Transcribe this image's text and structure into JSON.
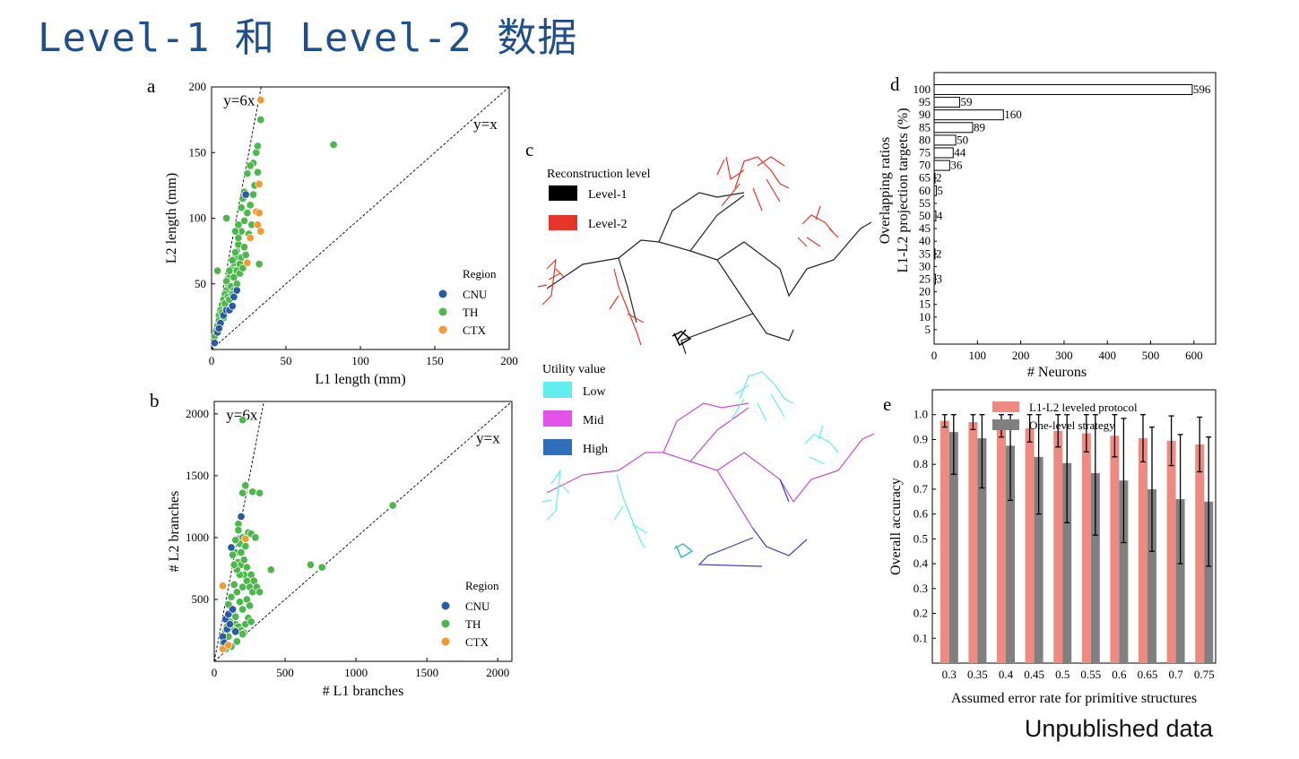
{
  "slide": {
    "title": "Level-1 和 Level-2 数据",
    "footer": "Unpublished data"
  },
  "colors": {
    "CNU": "#2a5aa5",
    "TH": "#4cb84c",
    "CTX": "#f29b34",
    "level1": "#000000",
    "level2": "#e8352a",
    "low": "#62eef0",
    "mid": "#e452ea",
    "high": "#2f6fba",
    "bar_red": "#ee8a82",
    "bar_gray": "#808080"
  },
  "panels": {
    "c": {
      "letter": "c",
      "recon_legend": {
        "title": "Reconstruction level",
        "items": [
          "Level-1",
          "Level-2"
        ]
      },
      "utility_legend": {
        "title": "Utility value",
        "items": [
          "Low",
          "Mid",
          "High"
        ]
      }
    }
  },
  "chart_data": [
    {
      "id": "a",
      "letter": "a",
      "type": "scatter",
      "xlabel": "L1 length (mm)",
      "ylabel": "L2 length (mm)",
      "xlim": [
        0,
        200
      ],
      "ylim": [
        0,
        200
      ],
      "xticks": [
        0,
        50,
        100,
        150,
        200
      ],
      "yticks": [
        50,
        100,
        150,
        200
      ],
      "lines": [
        {
          "label": "y=6x",
          "slope": 6
        },
        {
          "label": "y=x",
          "slope": 1
        }
      ],
      "legend": {
        "title": "Region",
        "position": "bottom-right",
        "items": [
          "CNU",
          "TH",
          "CTX"
        ]
      },
      "series": [
        {
          "name": "TH",
          "points": [
            [
              13,
              58
            ],
            [
              14,
              62
            ],
            [
              15,
              66
            ],
            [
              16,
              70
            ],
            [
              17,
              75
            ],
            [
              18,
              80
            ],
            [
              12,
              55
            ],
            [
              11,
              50
            ],
            [
              10,
              45
            ],
            [
              9,
              42
            ],
            [
              8,
              38
            ],
            [
              7,
              34
            ],
            [
              6,
              30
            ],
            [
              5,
              26
            ],
            [
              10,
              52
            ],
            [
              12,
              60
            ],
            [
              14,
              68
            ],
            [
              16,
              74
            ],
            [
              18,
              85
            ],
            [
              20,
              90
            ],
            [
              22,
              98
            ],
            [
              24,
              104
            ],
            [
              26,
              110
            ],
            [
              28,
              118
            ],
            [
              20,
              70
            ],
            [
              22,
              78
            ],
            [
              19,
              65
            ],
            [
              17,
              60
            ],
            [
              15,
              55
            ],
            [
              13,
              48
            ],
            [
              11,
              40
            ],
            [
              9,
              35
            ],
            [
              7,
              28
            ],
            [
              5,
              22
            ],
            [
              4,
              18
            ],
            [
              3,
              14
            ],
            [
              2,
              10
            ],
            [
              15,
              45
            ],
            [
              17,
              50
            ],
            [
              19,
              58
            ],
            [
              21,
              62
            ],
            [
              23,
              72
            ],
            [
              25,
              88
            ],
            [
              27,
              95
            ],
            [
              29,
              125
            ],
            [
              31,
              135
            ],
            [
              30,
              150
            ],
            [
              31,
              155
            ],
            [
              33,
              175
            ],
            [
              28,
              142
            ],
            [
              26,
              140
            ],
            [
              24,
              134
            ],
            [
              22,
              120
            ],
            [
              21,
              115
            ],
            [
              20,
              108
            ],
            [
              10,
              100
            ],
            [
              4,
              60
            ],
            [
              32,
              65
            ],
            [
              82,
              156
            ],
            [
              18,
              95
            ],
            [
              16,
              90
            ],
            [
              12,
              38
            ],
            [
              14,
              42
            ],
            [
              8,
              24
            ],
            [
              10,
              30
            ]
          ]
        },
        {
          "name": "CNU",
          "points": [
            [
              2,
              5
            ],
            [
              4,
              13
            ],
            [
              6,
              20
            ],
            [
              8,
              26
            ],
            [
              10,
              30
            ],
            [
              12,
              30
            ],
            [
              15,
              40
            ],
            [
              17,
              45
            ],
            [
              23,
              118
            ],
            [
              14,
              33
            ],
            [
              5,
              16
            ]
          ]
        },
        {
          "name": "CTX",
          "points": [
            [
              33,
              190
            ],
            [
              32,
              126
            ],
            [
              30,
              105
            ],
            [
              32,
              104
            ],
            [
              31,
              95
            ],
            [
              33,
              90
            ],
            [
              24,
              66
            ],
            [
              26,
              85
            ]
          ]
        }
      ]
    },
    {
      "id": "b",
      "letter": "b",
      "type": "scatter",
      "xlabel": "# L1 branches",
      "ylabel": "# L2 branches",
      "xlim": [
        0,
        2100
      ],
      "ylim": [
        0,
        2100
      ],
      "xticks": [
        0,
        500,
        1000,
        1500,
        2000
      ],
      "yticks": [
        500,
        1000,
        1500,
        2000
      ],
      "lines": [
        {
          "label": "y=6x",
          "slope": 6
        },
        {
          "label": "y=x",
          "slope": 1
        }
      ],
      "legend": {
        "title": "Region",
        "position": "bottom-right",
        "items": [
          "CNU",
          "TH",
          "CTX"
        ]
      },
      "series": [
        {
          "name": "TH",
          "points": [
            [
              200,
              1950
            ],
            [
              220,
              1420
            ],
            [
              200,
              1360
            ],
            [
              270,
              1370
            ],
            [
              320,
              1360
            ],
            [
              170,
              1110
            ],
            [
              200,
              1000
            ],
            [
              240,
              1040
            ],
            [
              260,
              1030
            ],
            [
              290,
              1000
            ],
            [
              180,
              950
            ],
            [
              220,
              930
            ],
            [
              150,
              880
            ],
            [
              170,
              800
            ],
            [
              190,
              780
            ],
            [
              210,
              700
            ],
            [
              230,
              650
            ],
            [
              250,
              600
            ],
            [
              270,
              560
            ],
            [
              140,
              620
            ],
            [
              160,
              560
            ],
            [
              180,
              480
            ],
            [
              200,
              420
            ],
            [
              120,
              520
            ],
            [
              100,
              460
            ],
            [
              130,
              400
            ],
            [
              150,
              360
            ],
            [
              110,
              320
            ],
            [
              90,
              280
            ],
            [
              80,
              240
            ],
            [
              70,
              200
            ],
            [
              150,
              300
            ],
            [
              170,
              280
            ],
            [
              190,
              250
            ],
            [
              210,
              230
            ],
            [
              230,
              500
            ],
            [
              250,
              450
            ],
            [
              200,
              600
            ],
            [
              180,
              700
            ],
            [
              160,
              740
            ],
            [
              140,
              780
            ],
            [
              130,
              860
            ],
            [
              150,
              980
            ],
            [
              170,
              1060
            ],
            [
              190,
              880
            ],
            [
              210,
              820
            ],
            [
              230,
              760
            ],
            [
              260,
              700
            ],
            [
              280,
              650
            ],
            [
              300,
              600
            ],
            [
              320,
              560
            ],
            [
              240,
              350
            ],
            [
              220,
              300
            ],
            [
              260,
              320
            ],
            [
              400,
              740
            ],
            [
              680,
              780
            ],
            [
              760,
              760
            ],
            [
              1260,
              1260
            ],
            [
              120,
              120
            ],
            [
              160,
              160
            ],
            [
              200,
              220
            ],
            [
              60,
              150
            ],
            [
              80,
              100
            ],
            [
              100,
              200
            ],
            [
              140,
              250
            ]
          ]
        },
        {
          "name": "CNU",
          "points": [
            [
              120,
              920
            ],
            [
              190,
              1170
            ],
            [
              80,
              340
            ],
            [
              100,
              380
            ],
            [
              130,
              420
            ],
            [
              90,
              260
            ],
            [
              60,
              200
            ],
            [
              110,
              300
            ],
            [
              150,
              240
            ],
            [
              70,
              150
            ]
          ]
        },
        {
          "name": "CTX",
          "points": [
            [
              60,
              610
            ],
            [
              220,
              990
            ],
            [
              60,
              100
            ],
            [
              100,
              130
            ]
          ]
        }
      ]
    },
    {
      "id": "d",
      "letter": "d",
      "type": "bar",
      "orientation": "horizontal",
      "xlabel": "# Neurons",
      "ylabel": [
        "Overlapping ratios",
        "L1-L2 projection targets (%)"
      ],
      "xlim": [
        0,
        650
      ],
      "xticks": [
        0,
        100,
        200,
        300,
        400,
        500,
        600
      ],
      "categories": [
        100,
        95,
        90,
        85,
        80,
        75,
        70,
        65,
        60,
        55,
        50,
        45,
        40,
        35,
        30,
        25,
        20,
        15,
        10,
        5
      ],
      "values": [
        596,
        59,
        160,
        89,
        50,
        44,
        36,
        2,
        5,
        null,
        4,
        null,
        null,
        2,
        null,
        3,
        null,
        null,
        null,
        null
      ],
      "data_labels": [
        "596",
        "59",
        "160",
        "89",
        "50",
        "44",
        "36",
        "2",
        "5",
        "",
        "4",
        "",
        "",
        "2",
        "",
        "3",
        "",
        "",
        "",
        ""
      ]
    },
    {
      "id": "e",
      "letter": "e",
      "type": "bar",
      "xlabel": "Assumed error rate for primitive structures",
      "ylabel": "Overall accuracy",
      "ylim": [
        0,
        1.1
      ],
      "yticks": [
        0.1,
        0.2,
        0.3,
        0.4,
        0.5,
        0.6,
        0.7,
        0.8,
        0.9,
        1.0
      ],
      "categories": [
        "0.3",
        "0.35",
        "0.4",
        "0.45",
        "0.5",
        "0.55",
        "0.6",
        "0.65",
        "0.7",
        "0.75"
      ],
      "legend_position": "top",
      "series": [
        {
          "name": "L1-L2 leveled protocol",
          "values": [
            0.975,
            0.97,
            0.955,
            0.945,
            0.935,
            0.925,
            0.915,
            0.905,
            0.895,
            0.88
          ],
          "err": [
            0.025,
            0.03,
            0.045,
            0.055,
            0.065,
            0.075,
            0.085,
            0.095,
            0.1,
            0.11
          ]
        },
        {
          "name": "One-level strategy",
          "values": [
            0.93,
            0.905,
            0.875,
            0.83,
            0.805,
            0.765,
            0.735,
            0.7,
            0.66,
            0.65
          ],
          "err": [
            0.17,
            0.2,
            0.22,
            0.23,
            0.24,
            0.25,
            0.25,
            0.25,
            0.26,
            0.26
          ]
        }
      ]
    }
  ]
}
